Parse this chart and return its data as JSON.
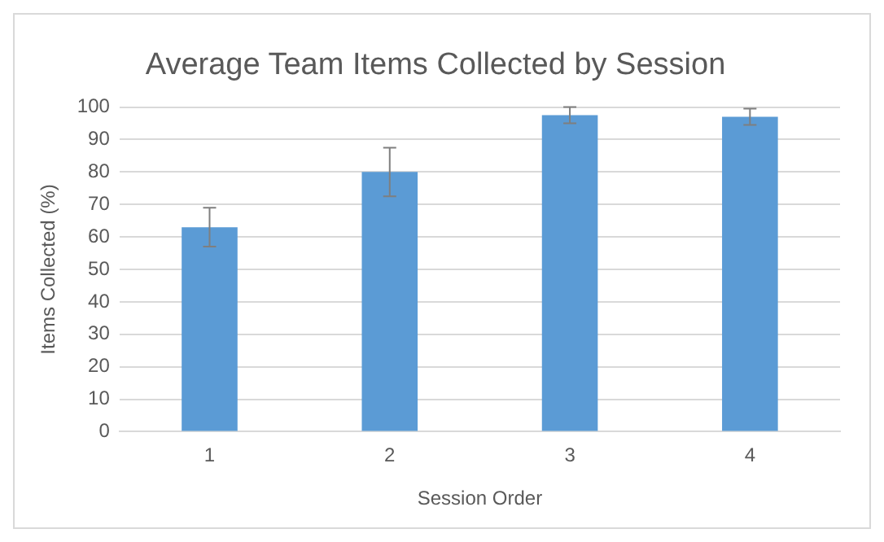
{
  "chart_data": {
    "type": "bar",
    "title": "Average Team Items Collected by Session",
    "xlabel": "Session Order",
    "ylabel": "Items Collected (%)",
    "categories": [
      "1",
      "2",
      "3",
      "4"
    ],
    "values": [
      63,
      80,
      97.5,
      97
    ],
    "errors": [
      6,
      7.5,
      2.5,
      2.5
    ],
    "color": "#5b9bd5",
    "ylim": [
      0,
      100
    ],
    "yticks": [
      0,
      10,
      20,
      30,
      40,
      50,
      60,
      70,
      80,
      90,
      100
    ],
    "grid": "y",
    "legend": false
  }
}
